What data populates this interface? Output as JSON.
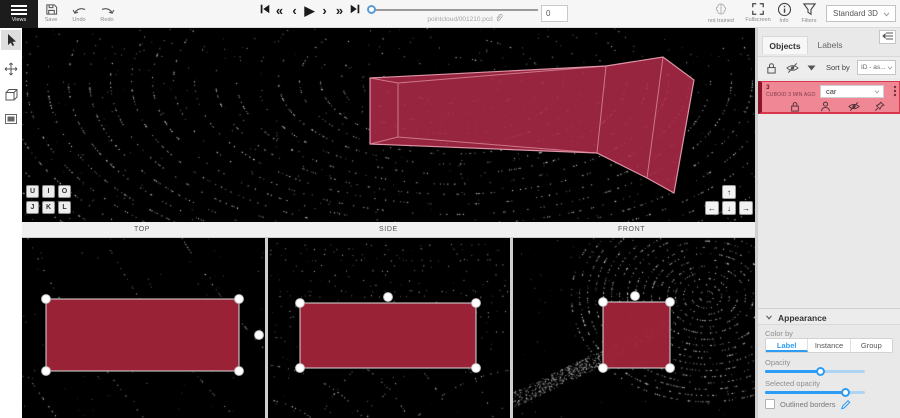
{
  "topbar": {
    "menu_label": "Views",
    "save_label": "Save",
    "undo_label": "Undo",
    "redo_label": "Redo",
    "filename": "pointcloud/001210.pcd",
    "frame_value": "0",
    "not_trained_label": "not trained",
    "fullscreen_label": "Fullscreen",
    "info_label": "Info",
    "filters_label": "Filters",
    "mode_value": "Standard 3D"
  },
  "viewport": {
    "hotkeys": [
      "U",
      "I",
      "O",
      "J",
      "K",
      "L"
    ],
    "arrows": [
      "↑",
      "←",
      "↓",
      "→"
    ]
  },
  "views": {
    "labels": [
      "TOP",
      "SIDE",
      "FRONT"
    ]
  },
  "panel": {
    "tabs": [
      "Objects",
      "Labels"
    ],
    "sort_label": "Sort by",
    "sort_value": "ID - as...",
    "object": {
      "id": "3",
      "meta": "CUBOID 3 MIN AGO",
      "class_value": "car"
    },
    "appearance": {
      "title": "Appearance",
      "color_by": "Color by",
      "options": [
        "Label",
        "Instance",
        "Group"
      ],
      "opacity_label": "Opacity",
      "opacity_percent": 56,
      "selected_opacity_label": "Selected opacity",
      "selected_opacity_percent": 81,
      "outlined_label": "Outlined borders"
    }
  },
  "colors": {
    "accent": "#2d9cf4",
    "annotation": "#b02b49",
    "object_row": "#ef8794"
  }
}
